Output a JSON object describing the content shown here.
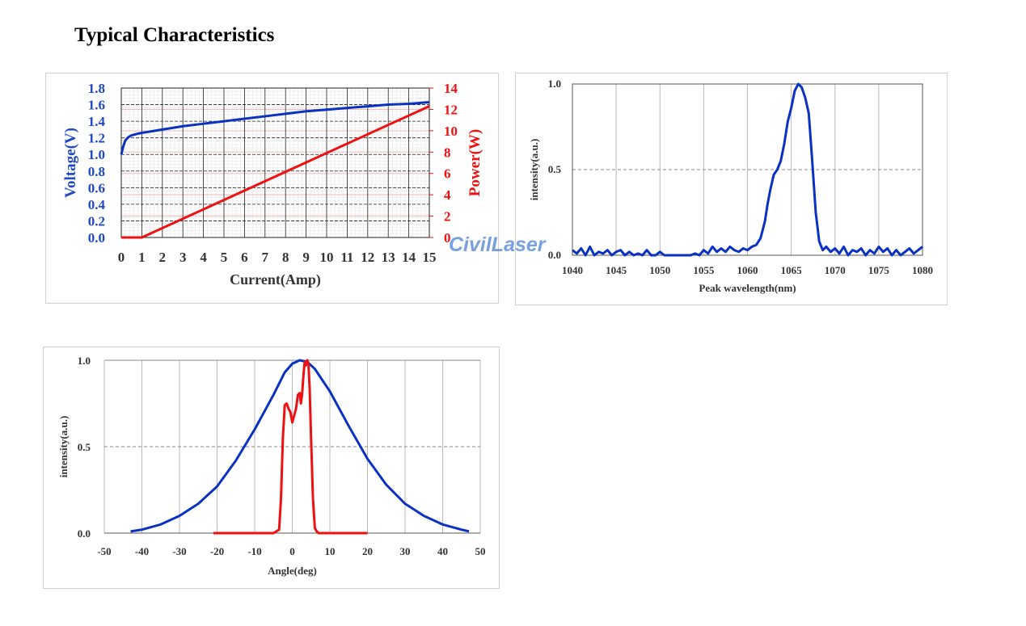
{
  "page": {
    "title": "Typical Characteristics",
    "watermark": "CivilLaser"
  },
  "colors": {
    "blue": "#0a32c2",
    "red": "#ee1111",
    "axis_blue": "#1f49c4",
    "axis_red": "#ee1111"
  },
  "chart_data": [
    {
      "type": "line",
      "xlabel": "Current(Amp)",
      "ylabel_left": "Voltage(V)",
      "ylabel_right": "Power(W)",
      "xlim": [
        0,
        15
      ],
      "ylim_left": [
        0,
        1.8
      ],
      "ylim_right": [
        0,
        14
      ],
      "x_ticks": [
        "0",
        "1",
        "2",
        "3",
        "4",
        "5",
        "6",
        "7",
        "8",
        "9",
        "10",
        "11",
        "12",
        "13",
        "14",
        "15"
      ],
      "y_ticks_left": [
        "0.0",
        "0.2",
        "0.4",
        "0.6",
        "0.8",
        "1.0",
        "1.2",
        "1.4",
        "1.6",
        "1.8"
      ],
      "y_ticks_right": [
        "0",
        "2",
        "4",
        "6",
        "8",
        "10",
        "12",
        "14"
      ],
      "grid": true,
      "series": [
        {
          "axis": "left",
          "color": "#0a32c2",
          "x": [
            0,
            0.1,
            0.2,
            0.35,
            0.5,
            0.8,
            1,
            2,
            3,
            4,
            5,
            6,
            7,
            8,
            9,
            10,
            11,
            12,
            13,
            14,
            15
          ],
          "y": [
            1.0,
            1.1,
            1.17,
            1.21,
            1.23,
            1.25,
            1.26,
            1.3,
            1.34,
            1.37,
            1.4,
            1.43,
            1.46,
            1.49,
            1.52,
            1.54,
            1.56,
            1.58,
            1.6,
            1.61,
            1.63
          ]
        },
        {
          "axis": "right",
          "color": "#ee1111",
          "x": [
            0,
            1,
            15
          ],
          "y": [
            0,
            0,
            12.3
          ]
        }
      ]
    },
    {
      "type": "line",
      "xlabel": "Peak wavelength(nm)",
      "ylabel": "intensity(a.u.)",
      "xlim": [
        1040,
        1080
      ],
      "ylim": [
        0,
        1.0
      ],
      "x_ticks": [
        "1040",
        "1045",
        "1050",
        "1055",
        "1060",
        "1065",
        "1070",
        "1075",
        "1080"
      ],
      "y_ticks": [
        "0.0",
        "0.5",
        "1.0"
      ],
      "grid": true,
      "series": [
        {
          "color": "#0a32c2",
          "x": [
            1040,
            1040.5,
            1041,
            1041.5,
            1042,
            1042.5,
            1043,
            1043.5,
            1044,
            1044.5,
            1045,
            1045.5,
            1046,
            1046.5,
            1047,
            1047.5,
            1048,
            1048.5,
            1049,
            1049.5,
            1050,
            1050.5,
            1051,
            1051.5,
            1052,
            1052.5,
            1053,
            1053.5,
            1054,
            1054.5,
            1055,
            1055.5,
            1056,
            1056.5,
            1057,
            1057.5,
            1058,
            1058.5,
            1059,
            1059.5,
            1060,
            1060.5,
            1061,
            1061.5,
            1062,
            1062.3,
            1062.6,
            1063,
            1063.4,
            1063.8,
            1064.2,
            1064.6,
            1065,
            1065.4,
            1065.8,
            1066.2,
            1066.6,
            1067,
            1067.4,
            1067.8,
            1068.2,
            1068.6,
            1069,
            1069.5,
            1070,
            1070.5,
            1071,
            1071.5,
            1072,
            1072.5,
            1073,
            1073.5,
            1074,
            1074.5,
            1075,
            1075.5,
            1076,
            1076.5,
            1077,
            1077.5,
            1078,
            1078.5,
            1079,
            1079.5,
            1080
          ],
          "y": [
            0.03,
            0.01,
            0.04,
            0.0,
            0.05,
            0.0,
            0.02,
            0.01,
            0.03,
            0.0,
            0.02,
            0.03,
            0.0,
            0.02,
            0.0,
            0.01,
            0.0,
            0.03,
            0.0,
            0.0,
            0.02,
            0.0,
            0.0,
            0.0,
            0.0,
            0.0,
            0.0,
            0.0,
            0.01,
            0.0,
            0.03,
            0.01,
            0.05,
            0.02,
            0.04,
            0.02,
            0.05,
            0.03,
            0.02,
            0.04,
            0.03,
            0.05,
            0.06,
            0.1,
            0.2,
            0.3,
            0.38,
            0.47,
            0.5,
            0.55,
            0.65,
            0.78,
            0.86,
            0.96,
            1.0,
            0.98,
            0.92,
            0.83,
            0.55,
            0.25,
            0.08,
            0.03,
            0.05,
            0.02,
            0.04,
            0.01,
            0.05,
            0.0,
            0.03,
            0.02,
            0.04,
            0.0,
            0.03,
            0.01,
            0.05,
            0.02,
            0.04,
            0.0,
            0.03,
            0.0,
            0.02,
            0.04,
            0.01,
            0.03,
            0.05
          ]
        }
      ]
    },
    {
      "type": "line",
      "xlabel": "Angle(deg)",
      "ylabel": "intensity(a.u.)",
      "xlim": [
        -50,
        50
      ],
      "ylim": [
        0,
        1.0
      ],
      "x_ticks": [
        "-50",
        "-40",
        "-30",
        "-20",
        "-10",
        "0",
        "10",
        "20",
        "30",
        "40",
        "50"
      ],
      "y_ticks": [
        "0.0",
        "0.5",
        "1.0"
      ],
      "grid": true,
      "series": [
        {
          "color": "#0a32c2",
          "x": [
            -43,
            -40,
            -35,
            -30,
            -25,
            -20,
            -15,
            -10,
            -5,
            -2,
            0,
            2,
            4,
            6,
            10,
            15,
            20,
            25,
            30,
            35,
            40,
            45,
            47
          ],
          "y": [
            0.01,
            0.02,
            0.05,
            0.1,
            0.17,
            0.27,
            0.42,
            0.6,
            0.8,
            0.93,
            0.98,
            1.0,
            0.99,
            0.95,
            0.82,
            0.62,
            0.43,
            0.28,
            0.17,
            0.1,
            0.05,
            0.02,
            0.01
          ]
        },
        {
          "color": "#ee1111",
          "x": [
            -21,
            -5,
            -3.5,
            -3,
            -2.5,
            -2,
            -1.5,
            -1,
            -0.5,
            0,
            0.5,
            1,
            1.5,
            2,
            2.3,
            2.6,
            3,
            3.3,
            3.6,
            4,
            4.3,
            4.6,
            5,
            5.5,
            6,
            6.5,
            7,
            8,
            20
          ],
          "y": [
            0.0,
            0.0,
            0.02,
            0.2,
            0.55,
            0.74,
            0.75,
            0.72,
            0.7,
            0.64,
            0.68,
            0.72,
            0.8,
            0.81,
            0.75,
            0.8,
            0.92,
            0.99,
            0.97,
            1.0,
            0.98,
            0.85,
            0.55,
            0.2,
            0.03,
            0.01,
            0.0,
            0.0,
            0.0
          ]
        }
      ]
    }
  ]
}
